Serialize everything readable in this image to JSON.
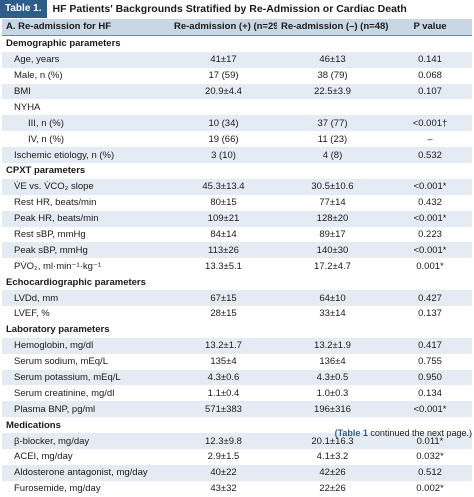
{
  "table_label": "Table 1.",
  "title": "HF Patients' Backgrounds Stratified by Re-Admission or Cardiac Death",
  "headers": [
    "A. Re-admission for HF",
    "Re-admission (+) (n=29)",
    "Re-admission (–) (n=48)",
    "P value"
  ],
  "rows": [
    {
      "type": "section",
      "label": "Demographic parameters",
      "a": "",
      "b": "",
      "p": ""
    },
    {
      "type": "row",
      "label": "Age, years",
      "a": "41±17",
      "b": "46±13",
      "p": "0.141"
    },
    {
      "type": "row",
      "label": "Male, n (%)",
      "a": "17 (59)",
      "b": "38 (79)",
      "p": "0.068"
    },
    {
      "type": "row",
      "label": "BMI",
      "a": "20.9±4.4",
      "b": "22.5±3.9",
      "p": "0.107"
    },
    {
      "type": "row",
      "label": "NYHA",
      "a": "",
      "b": "",
      "p": ""
    },
    {
      "type": "sub",
      "label": "III, n (%)",
      "a": "10 (34)",
      "b": "37 (77)",
      "p": "<0.001†"
    },
    {
      "type": "sub",
      "label": "IV, n (%)",
      "a": "19 (66)",
      "b": "11 (23)",
      "p": "–"
    },
    {
      "type": "row",
      "label": "Ischemic etiology, n (%)",
      "a": "3 (10)",
      "b": "4 (8)",
      "p": "0.532"
    },
    {
      "type": "section",
      "label": "CPXT parameters",
      "a": "",
      "b": "",
      "p": ""
    },
    {
      "type": "row",
      "label": "V̇E vs. V̇CO₂ slope",
      "a": "45.3±13.4",
      "b": "30.5±10.6",
      "p": "<0.001*"
    },
    {
      "type": "row",
      "label": "Rest HR, beats/min",
      "a": "80±15",
      "b": "77±14",
      "p": "0.432"
    },
    {
      "type": "row",
      "label": "Peak HR, beats/min",
      "a": "109±21",
      "b": "128±20",
      "p": "<0.001*"
    },
    {
      "type": "row",
      "label": "Rest sBP, mmHg",
      "a": "84±14",
      "b": "89±17",
      "p": "0.223"
    },
    {
      "type": "row",
      "label": "Peak sBP, mmHg",
      "a": "113±26",
      "b": "140±30",
      "p": "<0.001*"
    },
    {
      "type": "row",
      "label": "PV̇O₂, ml·min⁻¹·kg⁻¹",
      "a": "13.3±5.1",
      "b": "17.2±4.7",
      "p": "0.001*"
    },
    {
      "type": "section",
      "label": "Echocardiographic parameters",
      "a": "",
      "b": "",
      "p": ""
    },
    {
      "type": "row",
      "label": "LVDd, mm",
      "a": "67±15",
      "b": "64±10",
      "p": "0.427"
    },
    {
      "type": "row",
      "label": "LVEF, %",
      "a": "28±15",
      "b": "33±14",
      "p": "0.137"
    },
    {
      "type": "section",
      "label": "Laboratory parameters",
      "a": "",
      "b": "",
      "p": ""
    },
    {
      "type": "row",
      "label": "Hemoglobin, mg/dl",
      "a": "13.2±1.7",
      "b": "13.2±1.9",
      "p": "0.417"
    },
    {
      "type": "row",
      "label": "Serum sodium, mEq/L",
      "a": "135±4",
      "b": "136±4",
      "p": "0.755"
    },
    {
      "type": "row",
      "label": "Serum potassium, mEq/L",
      "a": "4.3±0.6",
      "b": "4.3±0.5",
      "p": "0.950"
    },
    {
      "type": "row",
      "label": "Serum creatinine, mg/dl",
      "a": "1.1±0.4",
      "b": "1.0±0.3",
      "p": "0.134"
    },
    {
      "type": "row",
      "label": "Plasma BNP, pg/ml",
      "a": "571±383",
      "b": "196±316",
      "p": "<0.001*"
    },
    {
      "type": "section",
      "label": "Medications",
      "a": "",
      "b": "",
      "p": ""
    },
    {
      "type": "row",
      "label": "β-blocker, mg/day",
      "a": "12.3±9.8",
      "b": "20.1±16.3",
      "p": "0.011*"
    },
    {
      "type": "row",
      "label": "ACEI, mg/day",
      "a": "2.9±1.5",
      "b": "4.1±3.2",
      "p": "0.032*"
    },
    {
      "type": "row",
      "label": "Aldosterone antagonist, mg/day",
      "a": "40±22",
      "b": "42±26",
      "p": "0.512"
    },
    {
      "type": "row",
      "label": "Furosemide, mg/day",
      "a": "43±32",
      "b": "22±26",
      "p": "0.002*"
    }
  ],
  "continued": {
    "link": "(Table 1",
    "text": " continued the next page.)"
  }
}
